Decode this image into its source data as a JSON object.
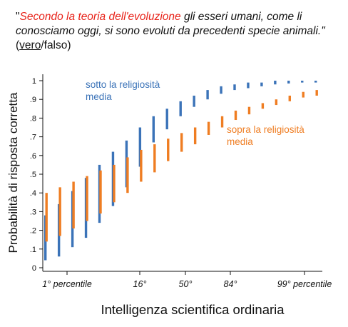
{
  "header": {
    "quote_open": "\"",
    "quote_red": "Secondo la teoria dell'evoluzione",
    "quote_rest": " gli esseri umani, come li conosciamo oggi, si sono evoluti da precedenti specie animali.\"",
    "answer_true": "vero",
    "answer_sep": "/falso",
    "answer_open": "(",
    "answer_close": ")"
  },
  "colors": {
    "below": "#3b73b8",
    "above": "#ef7d22",
    "red_text": "#e8231a"
  },
  "chart_data": {
    "type": "range-bar",
    "xlabel": "Intelligenza scientifica ordinaria",
    "ylabel": "Probabilità di risposta corretta",
    "ylim": [
      0,
      1
    ],
    "yticks": [
      "0",
      ".1",
      ".2",
      ".3",
      ".4",
      ".5",
      ".6",
      ".7",
      ".8",
      ".9",
      "1"
    ],
    "xticks": [
      "1° percentile",
      "16°",
      "50°",
      "84°",
      "99° percentile"
    ],
    "annotations": [
      {
        "series": "below",
        "lines": [
          "sotto la religiosità",
          "media"
        ]
      },
      {
        "series": "above",
        "lines": [
          "sopra la religiosità",
          "media"
        ]
      }
    ],
    "series": [
      {
        "key": "below",
        "ranges": [
          [
            0.04,
            0.28
          ],
          [
            0.06,
            0.34
          ],
          [
            0.11,
            0.41
          ],
          [
            0.16,
            0.48
          ],
          [
            0.24,
            0.55
          ],
          [
            0.33,
            0.62
          ],
          [
            0.43,
            0.68
          ],
          [
            0.54,
            0.75
          ],
          [
            0.67,
            0.81
          ],
          [
            0.74,
            0.85
          ],
          [
            0.81,
            0.89
          ],
          [
            0.86,
            0.92
          ],
          [
            0.9,
            0.95
          ],
          [
            0.93,
            0.97
          ],
          [
            0.95,
            0.98
          ],
          [
            0.96,
            0.99
          ],
          [
            0.97,
            0.99
          ],
          [
            0.98,
            1.0
          ],
          [
            0.985,
            1.0
          ],
          [
            0.99,
            1.0
          ],
          [
            0.99,
            1.0
          ]
        ]
      },
      {
        "key": "above",
        "ranges": [
          [
            0.14,
            0.4
          ],
          [
            0.17,
            0.43
          ],
          [
            0.21,
            0.46
          ],
          [
            0.25,
            0.49
          ],
          [
            0.29,
            0.52
          ],
          [
            0.35,
            0.55
          ],
          [
            0.4,
            0.59
          ],
          [
            0.46,
            0.63
          ],
          [
            0.51,
            0.66
          ],
          [
            0.57,
            0.69
          ],
          [
            0.62,
            0.72
          ],
          [
            0.66,
            0.75
          ],
          [
            0.71,
            0.78
          ],
          [
            0.75,
            0.81
          ],
          [
            0.79,
            0.84
          ],
          [
            0.82,
            0.86
          ],
          [
            0.85,
            0.88
          ],
          [
            0.87,
            0.9
          ],
          [
            0.89,
            0.92
          ],
          [
            0.91,
            0.94
          ],
          [
            0.92,
            0.95
          ]
        ]
      }
    ]
  }
}
